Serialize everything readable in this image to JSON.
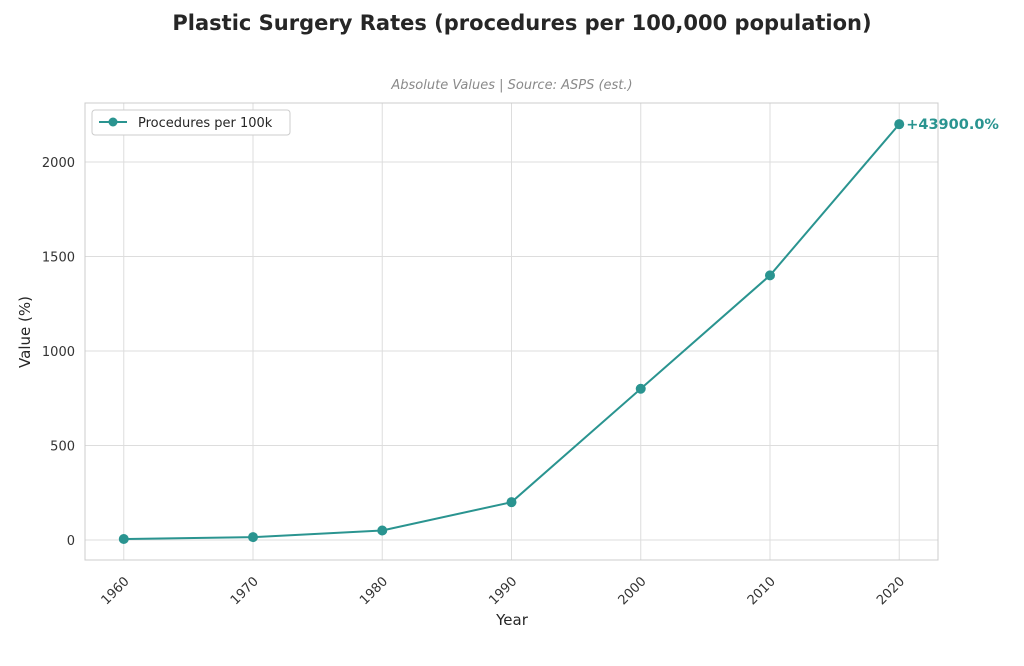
{
  "chart_data": {
    "type": "line",
    "title": "Plastic Surgery Rates (procedures per 100,000 population)",
    "subtitle": "Absolute Values | Source: ASPS (est.)",
    "xlabel": "Year",
    "ylabel": "Value (%)",
    "x": [
      1960,
      1970,
      1980,
      1990,
      2000,
      2010,
      2020
    ],
    "x_tick_labels": [
      "1960",
      "1970",
      "1980",
      "1990",
      "2000",
      "2010",
      "2020"
    ],
    "y_ticks": [
      0,
      500,
      1000,
      1500,
      2000
    ],
    "y_tick_labels": [
      "0",
      "500",
      "1000",
      "1500",
      "2000"
    ],
    "xlim": [
      1957,
      2023
    ],
    "ylim": [
      -106,
      2312
    ],
    "grid": true,
    "legend_position": "top-left",
    "series": [
      {
        "name": "Procedures per 100k",
        "color": "#2a9490",
        "marker": "circle",
        "values": [
          5,
          15,
          50,
          200,
          800,
          1400,
          2200
        ]
      }
    ],
    "annotations": [
      {
        "text": "+43900.0%",
        "x": 2020,
        "y": 2200,
        "color": "#2a9490"
      }
    ]
  }
}
